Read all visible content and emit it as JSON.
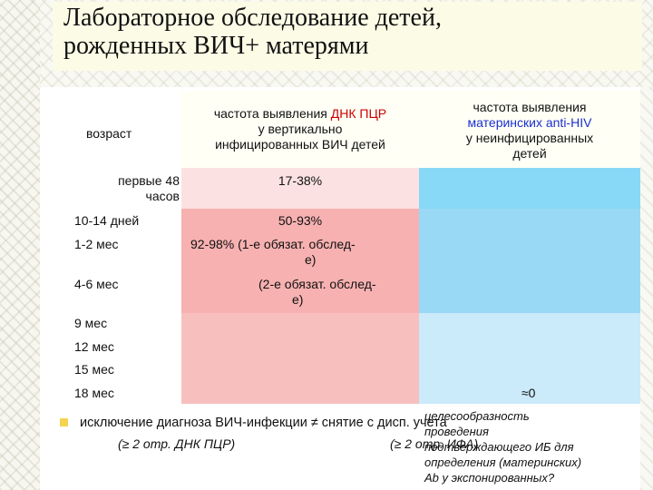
{
  "title": {
    "line1": "Лабораторное обследование детей,",
    "line2": "рожденных ВИЧ+ матерями"
  },
  "table": {
    "headers": {
      "age": "возраст",
      "pcr_line1_prefix": "частота выявления ",
      "pcr_line1_highlight": "ДНК ПЦР",
      "pcr_line2": "у вертикально",
      "pcr_line3": "инфицированных ВИЧ детей",
      "ab_line1": "частота выявления",
      "ab_line2": "материнских anti-HIV",
      "ab_line3": "у неинфицированных",
      "ab_line4": "детей"
    },
    "rows": {
      "r1_age_a": "первые 48",
      "r1_age_b": "часов",
      "r1_pcr": "17-38%",
      "r2_age": "10-14 дней",
      "r2_pcr": "50-93%",
      "r3_age": "1-2 мес",
      "r3_pcr_a": "92-98%  (1-е обязат. обслед-",
      "r3_pcr_b": "е)",
      "r4_age": "4-6 мес",
      "r4_pcr_a": "(2-е обязат. обслед-",
      "r4_pcr_b": "е)",
      "r5_age": "9 мес",
      "r6_age": "12 мес",
      "r7_age": "15 мес",
      "r8_age": "18 мес",
      "r8_ab": "≈0"
    }
  },
  "footer": {
    "bullet_line": "исключение диагноза ВИЧ-инфекции ≠ снятие с дисп. учета",
    "left_note": "(≥ 2 отр. ДНК ПЦР)",
    "right_note": "(≥ 2 отр. ИФА)",
    "overlay_line1": "целесообразность",
    "overlay_line2": "проведения",
    "overlay_line3": "подтверждающего ИБ для",
    "overlay_line4": "определения (материнских)",
    "overlay_line5": "Ab у экспонированных?"
  },
  "colors": {
    "title_band": "#fcfce6",
    "pink_light": "#fbe1e1",
    "pink_mid": "#f7b1b1",
    "blue_dark": "#88d8f8",
    "blue_light": "#cbeafa",
    "highlight_red": "#cc0000",
    "highlight_blue": "#1a2fd0",
    "bullet": "#f4d34e"
  }
}
